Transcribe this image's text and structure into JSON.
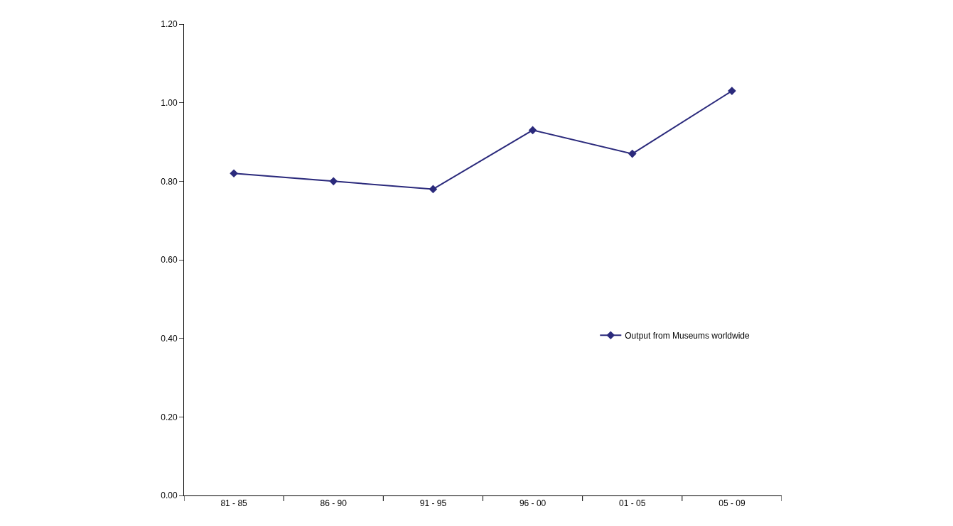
{
  "chart_data": {
    "type": "line",
    "categories": [
      "81 - 85",
      "86 - 90",
      "91 - 95",
      "96 - 00",
      "01 - 05",
      "05 - 09"
    ],
    "series": [
      {
        "name": "Output from Museums worldwide",
        "color": "#2b2a7c",
        "values": [
          0.82,
          0.8,
          0.78,
          0.93,
          0.87,
          1.03
        ]
      }
    ],
    "ylim": [
      0,
      1.2
    ],
    "yticks": [
      {
        "value": 0,
        "label": "0.00"
      },
      {
        "value": 0.2,
        "label": "0.20"
      },
      {
        "value": 0.4,
        "label": "0.40"
      },
      {
        "value": 0.6,
        "label": "0.60"
      },
      {
        "value": 0.8,
        "label": "0.80"
      },
      {
        "value": 1.0,
        "label": "1.00"
      },
      {
        "value": 1.2,
        "label": "1.20"
      }
    ],
    "grid": false,
    "legend": "right",
    "marker": "diamond",
    "line_style": "solid"
  }
}
